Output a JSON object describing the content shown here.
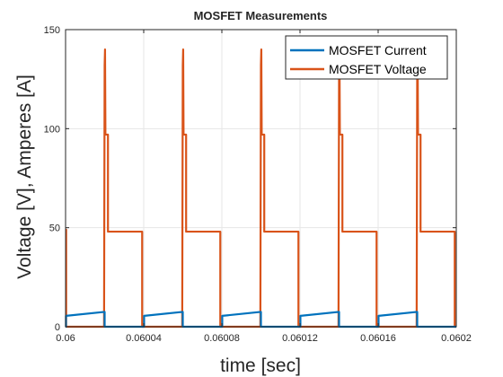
{
  "chart_data": {
    "type": "line",
    "title": "MOSFET Measurements",
    "xlabel": "time [sec]",
    "ylabel": "Voltage [V], Amperes [A]",
    "xlim": [
      0.06,
      0.0602
    ],
    "ylim": [
      0,
      150
    ],
    "x_ticks": [
      0.06,
      0.06004,
      0.06008,
      0.06012,
      0.06016,
      0.0602
    ],
    "x_tick_labels": [
      "0.06",
      "0.06004",
      "0.06008",
      "0.06012",
      "0.06016",
      "0.0602"
    ],
    "y_ticks": [
      0,
      50,
      100,
      150
    ],
    "y_tick_labels": [
      "0",
      "50",
      "100",
      "150"
    ],
    "grid": true,
    "legend_position": "top-right",
    "colors": {
      "current": "#0072bd",
      "voltage": "#d95319"
    },
    "series": [
      {
        "name": "MOSFET Current",
        "color": "#0072bd",
        "x": [
          0.06,
          0.0600003,
          0.0600003,
          0.06000152,
          0.06000848,
          0.06000848,
          0.06004152,
          0.06004152,
          0.0600048,
          0.0600048,
          0.06004848,
          0.06004848,
          0.06008152,
          0.06008152,
          0.0600888,
          0.0600888,
          0.06012152,
          0.06012152,
          0.06012848,
          0.06012848,
          0.06016152,
          0.06016152,
          0.06016848,
          0.06016848,
          0.0602
        ],
        "y": [
          0,
          0,
          6,
          7.5,
          0,
          0,
          0,
          0,
          0,
          0,
          0,
          0,
          0,
          0,
          0,
          0,
          0,
          0,
          0,
          0,
          0,
          0,
          0,
          0,
          0
        ]
      },
      {
        "name": "MOSFET Voltage",
        "color": "#d95319"
      }
    ]
  },
  "legend": {
    "items": [
      {
        "label": "MOSFET Current",
        "color": "#0072bd"
      },
      {
        "label": "MOSFET Voltage",
        "color": "#d95319"
      }
    ]
  }
}
